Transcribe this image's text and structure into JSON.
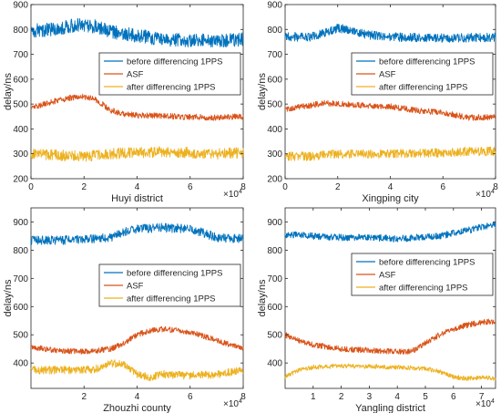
{
  "colors": {
    "series": [
      "#0072BD",
      "#D95319",
      "#EDB120"
    ],
    "axis": "#262626",
    "legend_border": "#262626"
  },
  "chart_data": [
    {
      "type": "line",
      "xlabel": "Huyi district",
      "ylabel": "delay/ns",
      "xlim": [
        0,
        80000
      ],
      "ylim": [
        200,
        900
      ],
      "x_exponent_label": "×10",
      "x_exponent": "4",
      "xticks": [
        0,
        20000,
        40000,
        60000,
        80000
      ],
      "xtick_labels": [
        "0",
        "2",
        "4",
        "6",
        "8"
      ],
      "yticks": [
        200,
        300,
        400,
        500,
        600,
        700,
        800,
        900
      ],
      "ytick_labels": [
        "200",
        "300",
        "400",
        "500",
        "600",
        "700",
        "800",
        "900"
      ],
      "legend": "right-middle",
      "series": [
        {
          "name": "before differencing 1PPS",
          "noise": 28,
          "x": [
            0,
            10000,
            15000,
            20000,
            25000,
            30000,
            40000,
            50000,
            60000,
            70000,
            80000
          ],
          "values": [
            795,
            800,
            815,
            820,
            810,
            790,
            775,
            760,
            755,
            755,
            760
          ]
        },
        {
          "name": "ASF",
          "noise": 12,
          "x": [
            0,
            5000,
            10000,
            15000,
            20000,
            25000,
            30000,
            35000,
            40000,
            50000,
            60000,
            70000,
            80000
          ],
          "values": [
            485,
            500,
            515,
            525,
            530,
            515,
            475,
            460,
            455,
            452,
            448,
            446,
            450
          ]
        },
        {
          "name": "after differencing 1PPS",
          "noise": 22,
          "x": [
            0,
            10000,
            20000,
            30000,
            40000,
            50000,
            60000,
            70000,
            80000
          ],
          "values": [
            300,
            295,
            290,
            300,
            305,
            308,
            305,
            300,
            305
          ]
        }
      ]
    },
    {
      "type": "line",
      "xlabel": "Xingping city",
      "ylabel": "delay/ns",
      "xlim": [
        0,
        80000
      ],
      "ylim": [
        200,
        900
      ],
      "x_exponent_label": "×10",
      "x_exponent": "4",
      "xticks": [
        0,
        20000,
        40000,
        60000,
        80000
      ],
      "xtick_labels": [
        "0",
        "2",
        "4",
        "6",
        "8"
      ],
      "yticks": [
        200,
        300,
        400,
        500,
        600,
        700,
        800,
        900
      ],
      "ytick_labels": [
        "200",
        "300",
        "400",
        "500",
        "600",
        "700",
        "800",
        "900"
      ],
      "legend": "right-middle",
      "series": [
        {
          "name": "before differencing 1PPS",
          "noise": 18,
          "x": [
            0,
            10000,
            15000,
            20000,
            25000,
            30000,
            40000,
            60000,
            80000
          ],
          "values": [
            770,
            770,
            785,
            805,
            800,
            780,
            770,
            765,
            768
          ]
        },
        {
          "name": "ASF",
          "noise": 12,
          "x": [
            0,
            10000,
            15000,
            20000,
            25000,
            30000,
            40000,
            50000,
            60000,
            70000,
            80000
          ],
          "values": [
            480,
            495,
            505,
            500,
            498,
            495,
            490,
            475,
            465,
            445,
            448
          ]
        },
        {
          "name": "after differencing 1PPS",
          "noise": 18,
          "x": [
            0,
            10000,
            20000,
            30000,
            40000,
            50000,
            60000,
            70000,
            80000
          ],
          "values": [
            290,
            290,
            300,
            298,
            300,
            302,
            305,
            310,
            310
          ]
        }
      ]
    },
    {
      "type": "line",
      "xlabel": "Zhouzhi county",
      "ylabel": "delay/ns",
      "xlim": [
        0,
        80000
      ],
      "ylim": [
        310,
        950
      ],
      "x_exponent_label": "×10",
      "x_exponent": "4",
      "xticks": [
        20000,
        40000,
        60000,
        80000
      ],
      "xtick_labels": [
        "2",
        "4",
        "6",
        "8"
      ],
      "yticks": [
        400,
        500,
        600,
        700,
        800,
        900
      ],
      "ytick_labels": [
        "400",
        "500",
        "600",
        "700",
        "800",
        "900"
      ],
      "legend": "right-middle",
      "series": [
        {
          "name": "before differencing 1PPS",
          "noise": 16,
          "x": [
            0,
            10000,
            20000,
            30000,
            35000,
            40000,
            50000,
            60000,
            70000,
            80000
          ],
          "values": [
            835,
            835,
            838,
            845,
            865,
            875,
            880,
            875,
            845,
            840
          ]
        },
        {
          "name": "ASF",
          "noise": 10,
          "x": [
            0,
            10000,
            20000,
            30000,
            35000,
            40000,
            45000,
            50000,
            60000,
            70000,
            80000
          ],
          "values": [
            455,
            445,
            440,
            450,
            470,
            500,
            515,
            520,
            510,
            480,
            450
          ]
        },
        {
          "name": "after differencing 1PPS",
          "noise": 14,
          "x": [
            0,
            10000,
            20000,
            25000,
            30000,
            35000,
            40000,
            45000,
            50000,
            60000,
            70000,
            80000
          ],
          "values": [
            375,
            375,
            375,
            380,
            400,
            395,
            360,
            350,
            360,
            355,
            360,
            375
          ]
        }
      ]
    },
    {
      "type": "line",
      "xlabel": "Yangling district",
      "ylabel": "delay/ns",
      "xlim": [
        0,
        75000
      ],
      "ylim": [
        310,
        950
      ],
      "x_exponent_label": "×10",
      "x_exponent": "4",
      "xticks": [
        10000,
        20000,
        30000,
        40000,
        50000,
        60000,
        70000
      ],
      "xtick_labels": [
        "1",
        "2",
        "3",
        "4",
        "5",
        "6",
        "7"
      ],
      "yticks": [
        400,
        500,
        600,
        700,
        800,
        900
      ],
      "ytick_labels": [
        "400",
        "500",
        "600",
        "700",
        "800",
        "900"
      ],
      "legend": "right-top",
      "series": [
        {
          "name": "before differencing 1PPS",
          "noise": 12,
          "x": [
            0,
            10000,
            20000,
            30000,
            40000,
            50000,
            55000,
            60000,
            65000,
            70000,
            75000
          ],
          "values": [
            855,
            850,
            845,
            845,
            840,
            848,
            850,
            860,
            870,
            882,
            890
          ]
        },
        {
          "name": "ASF",
          "noise": 10,
          "x": [
            0,
            5000,
            10000,
            20000,
            30000,
            40000,
            45000,
            50000,
            55000,
            60000,
            65000,
            70000,
            75000
          ],
          "values": [
            500,
            480,
            465,
            450,
            445,
            440,
            440,
            470,
            500,
            520,
            535,
            545,
            548
          ]
        },
        {
          "name": "after differencing 1PPS",
          "noise": 8,
          "x": [
            0,
            5000,
            10000,
            20000,
            30000,
            40000,
            50000,
            55000,
            60000,
            65000,
            70000,
            75000
          ],
          "values": [
            350,
            375,
            385,
            390,
            388,
            385,
            380,
            370,
            350,
            345,
            350,
            345
          ]
        }
      ]
    }
  ]
}
